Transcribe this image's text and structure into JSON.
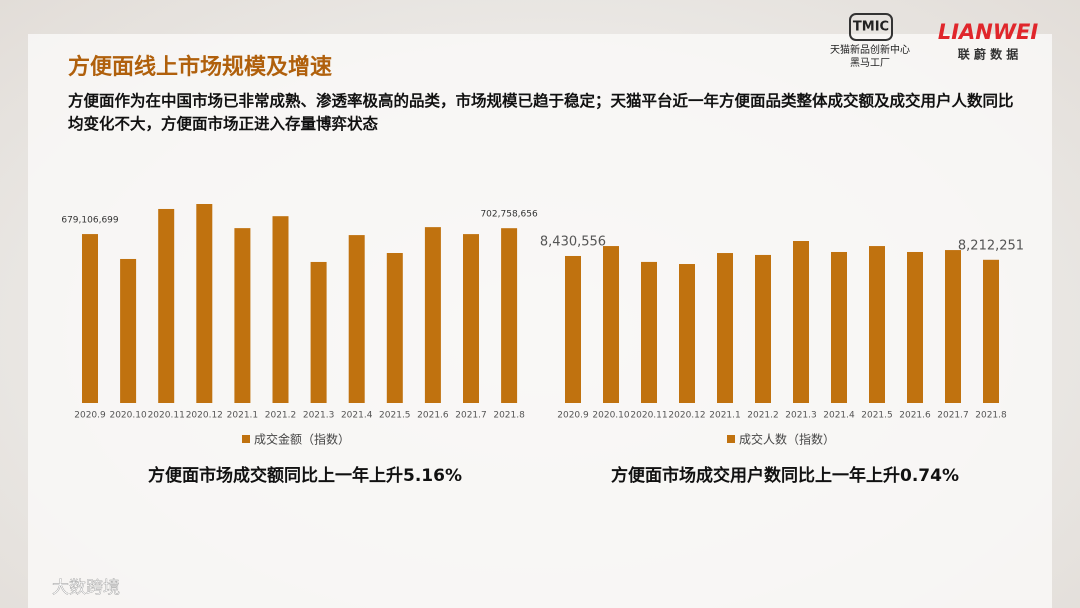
{
  "header": {
    "title": "方便面线上市场规模及增速",
    "subtitle": "方便面作为在中国市场已非常成熟、渗透率极高的品类，市场规模已趋于稳定；天猫平台近一年方便面品类整体成交额及成交用户人数同比均变化不大，方便面市场正进入存量博弈状态"
  },
  "logos": {
    "tmic": "TMIC",
    "tmic_line1": "天猫新品创新中心",
    "tmic_line2": "黑马工厂",
    "lianwei": "LIANWEI",
    "lianwei_cn": "联 蔚 数 据"
  },
  "footer": {
    "watermark": "大数跨境"
  },
  "chart_data": [
    {
      "type": "bar",
      "categories": [
        "2020.9",
        "2020.10",
        "2020.11",
        "2020.12",
        "2021.1",
        "2021.2",
        "2021.3",
        "2021.4",
        "2021.5",
        "2021.6",
        "2021.7",
        "2021.8"
      ],
      "series": [
        {
          "name": "成交金额（指数）",
          "color": "#c0720f",
          "values": [
            679106699,
            579000000,
            780000000,
            800000000,
            703000000,
            751000000,
            567000000,
            675000000,
            603000000,
            707000000,
            679000000,
            702758656
          ],
          "value_labels": [
            "679,106,699",
            null,
            null,
            null,
            null,
            null,
            null,
            null,
            null,
            null,
            null,
            "702,758,656"
          ]
        }
      ],
      "caption": "方便面市场成交额同比上一年上升5.16%"
    },
    {
      "type": "bar",
      "categories": [
        "2020.9",
        "2020.10",
        "2020.11",
        "2020.12",
        "2021.1",
        "2021.2",
        "2021.3",
        "2021.4",
        "2021.5",
        "2021.6",
        "2021.7",
        "2021.8"
      ],
      "series": [
        {
          "name": "成交人数（指数）",
          "color": "#c0720f",
          "values": [
            8430556,
            9000000,
            8090000,
            7970000,
            8600000,
            8490000,
            9290000,
            8660000,
            9000000,
            8660000,
            8770000,
            8212251
          ],
          "value_labels": [
            "8,430,556",
            null,
            null,
            null,
            null,
            null,
            null,
            null,
            null,
            null,
            null,
            "8,212,251"
          ]
        }
      ],
      "caption": "方便面市场成交用户数同比上一年上升0.74%"
    }
  ]
}
